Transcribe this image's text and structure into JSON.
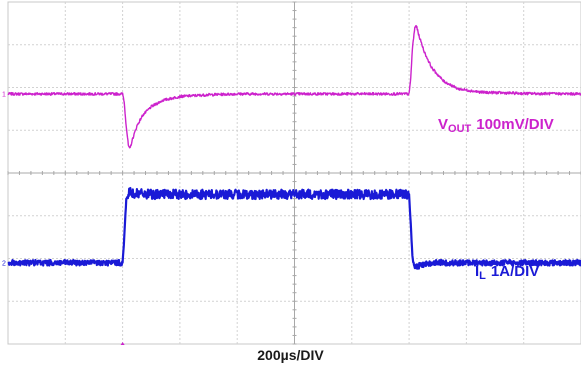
{
  "chart_data": {
    "type": "line",
    "title": "",
    "xlabel": "200µs/DIV",
    "ylabel": "",
    "grid": true,
    "x_divisions": 10,
    "y_divisions": 8,
    "x_unit": "µs",
    "x_per_div": 200,
    "xlim": [
      0,
      2000
    ],
    "series": [
      {
        "name_main": "V",
        "name_sub": "OUT",
        "scale": "100mV/DIV",
        "color": "#cc22cc",
        "baseline_div": 5.85,
        "zero_marker": "1",
        "points": [
          [
            0,
            0
          ],
          [
            400,
            0
          ],
          [
            405,
            -0.15
          ],
          [
            412,
            -0.7
          ],
          [
            420,
            -1.2
          ],
          [
            425,
            -1.3
          ],
          [
            435,
            -1.05
          ],
          [
            450,
            -0.75
          ],
          [
            470,
            -0.5
          ],
          [
            500,
            -0.3
          ],
          [
            540,
            -0.15
          ],
          [
            600,
            -0.06
          ],
          [
            700,
            -0.02
          ],
          [
            800,
            0
          ],
          [
            1000,
            0
          ],
          [
            1400,
            0
          ],
          [
            1405,
            0.3
          ],
          [
            1412,
            1.1
          ],
          [
            1420,
            1.55
          ],
          [
            1425,
            1.6
          ],
          [
            1435,
            1.35
          ],
          [
            1455,
            0.95
          ],
          [
            1480,
            0.6
          ],
          [
            1520,
            0.3
          ],
          [
            1570,
            0.12
          ],
          [
            1650,
            0.04
          ],
          [
            1800,
            0.01
          ],
          [
            2000,
            0
          ]
        ]
      },
      {
        "name_main": "I",
        "name_sub": "L",
        "scale": "1A/DIV",
        "color": "#1a1ad6",
        "baseline_div": 1.9,
        "zero_marker": "2",
        "points": [
          [
            0,
            0
          ],
          [
            400,
            0
          ],
          [
            405,
            0.5
          ],
          [
            412,
            1.4
          ],
          [
            422,
            1.65
          ],
          [
            440,
            1.62
          ],
          [
            500,
            1.6
          ],
          [
            800,
            1.6
          ],
          [
            1000,
            1.6
          ],
          [
            1400,
            1.6
          ],
          [
            1405,
            1.0
          ],
          [
            1412,
            0.1
          ],
          [
            1420,
            -0.12
          ],
          [
            1440,
            -0.05
          ],
          [
            1480,
            0
          ],
          [
            2000,
            0
          ]
        ]
      }
    ]
  }
}
